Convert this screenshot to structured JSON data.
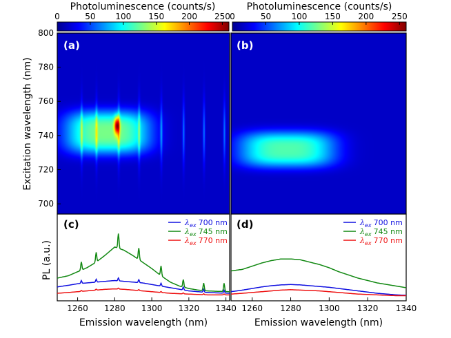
{
  "chart_data": [
    {
      "type": "heatmap",
      "panel": "(a)",
      "colorbar": {
        "title": "Photoluminescence (counts/s)",
        "range": [
          0,
          260
        ],
        "ticks": [
          0,
          50,
          100,
          150,
          200,
          250
        ]
      },
      "xlim": [
        1249,
        1342
      ],
      "ylim": [
        694,
        800
      ],
      "yticks": [
        700,
        720,
        740,
        760,
        780,
        800
      ],
      "ylabel": "Excitation wavelength (nm)",
      "peak": {
        "x": 1281,
        "y": 746,
        "value": 250
      },
      "blob": {
        "x": 1276,
        "y": 742,
        "sx": 22,
        "sy": 12,
        "value": 110
      },
      "lines": [
        1262,
        1270,
        1282,
        1293,
        1305,
        1317,
        1328,
        1339
      ]
    },
    {
      "type": "heatmap",
      "panel": "(b)",
      "colorbar": {
        "title": "Photoluminescence (counts/s)",
        "range": [
          0,
          260
        ],
        "ticks": [
          0,
          50,
          100,
          150,
          200,
          250
        ]
      },
      "xlim": [
        1249,
        1340
      ],
      "ylim": [
        694,
        800
      ],
      "blob": {
        "x": 1278,
        "y": 732,
        "sx": 24,
        "sy": 10,
        "value": 100
      }
    },
    {
      "type": "line",
      "panel": "(c)",
      "xlabel": "Emission wavelength (nm)",
      "ylabel": "PL (a.u.)",
      "xlim": [
        1249,
        1342
      ],
      "xticks": [
        1260,
        1280,
        1300,
        1320,
        1340
      ],
      "ylim": [
        0,
        1
      ],
      "x": [
        1249,
        1255,
        1260,
        1265,
        1270,
        1275,
        1280,
        1285,
        1290,
        1295,
        1300,
        1305,
        1310,
        1315,
        1320,
        1325,
        1330,
        1335,
        1342
      ],
      "series": [
        {
          "name": "λex 700 nm",
          "legend_text": "700 nm",
          "color": "#1010e0",
          "values": [
            0.14,
            0.16,
            0.18,
            0.19,
            0.2,
            0.21,
            0.22,
            0.21,
            0.2,
            0.19,
            0.17,
            0.15,
            0.13,
            0.11,
            0.09,
            0.08,
            0.07,
            0.065,
            0.06
          ]
        },
        {
          "name": "λex 745 nm",
          "legend_text": "745 nm",
          "color": "#118811",
          "values": [
            0.25,
            0.28,
            0.33,
            0.38,
            0.45,
            0.54,
            0.64,
            0.6,
            0.53,
            0.45,
            0.37,
            0.28,
            0.2,
            0.15,
            0.12,
            0.1,
            0.09,
            0.085,
            0.08
          ],
          "spikes": [
            [
              1262,
              0.08
            ],
            [
              1270,
              0.1
            ],
            [
              1282,
              0.16
            ],
            [
              1293,
              0.12
            ],
            [
              1305,
              0.1
            ],
            [
              1317,
              0.07
            ],
            [
              1328,
              0.07
            ],
            [
              1339,
              0.08
            ]
          ]
        },
        {
          "name": "λex 770 nm",
          "legend_text": "770 nm",
          "color": "#ee1111",
          "values": [
            0.06,
            0.07,
            0.08,
            0.09,
            0.1,
            0.11,
            0.115,
            0.11,
            0.1,
            0.09,
            0.08,
            0.07,
            0.06,
            0.055,
            0.05,
            0.045,
            0.04,
            0.04,
            0.04
          ]
        }
      ]
    },
    {
      "type": "line",
      "panel": "(d)",
      "xlabel": "Emission wavelength (nm)",
      "xlim": [
        1249,
        1340
      ],
      "xticks": [
        1260,
        1280,
        1300,
        1320,
        1340
      ],
      "ylim": [
        0,
        1
      ],
      "x": [
        1249,
        1255,
        1260,
        1265,
        1270,
        1275,
        1280,
        1285,
        1290,
        1295,
        1300,
        1305,
        1310,
        1315,
        1320,
        1325,
        1330,
        1335,
        1340
      ],
      "series": [
        {
          "name": "λex 700 nm",
          "legend_text": "700 nm",
          "color": "#1010e0",
          "values": [
            0.08,
            0.1,
            0.12,
            0.14,
            0.155,
            0.165,
            0.17,
            0.165,
            0.155,
            0.145,
            0.135,
            0.12,
            0.105,
            0.09,
            0.075,
            0.06,
            0.05,
            0.04,
            0.035
          ]
        },
        {
          "name": "λex 745 nm",
          "legend_text": "745 nm",
          "color": "#118811",
          "values": [
            0.34,
            0.36,
            0.4,
            0.44,
            0.47,
            0.49,
            0.49,
            0.48,
            0.45,
            0.42,
            0.38,
            0.33,
            0.29,
            0.25,
            0.22,
            0.19,
            0.17,
            0.15,
            0.13
          ]
        },
        {
          "name": "λex 770 nm",
          "legend_text": "770 nm",
          "color": "#ee1111",
          "values": [
            0.05,
            0.06,
            0.07,
            0.08,
            0.09,
            0.1,
            0.105,
            0.1,
            0.095,
            0.09,
            0.08,
            0.07,
            0.06,
            0.05,
            0.045,
            0.04,
            0.035,
            0.03,
            0.03
          ]
        }
      ]
    }
  ],
  "legend": {
    "lambda_symbol": "λ",
    "lambda_sub": "ex"
  }
}
